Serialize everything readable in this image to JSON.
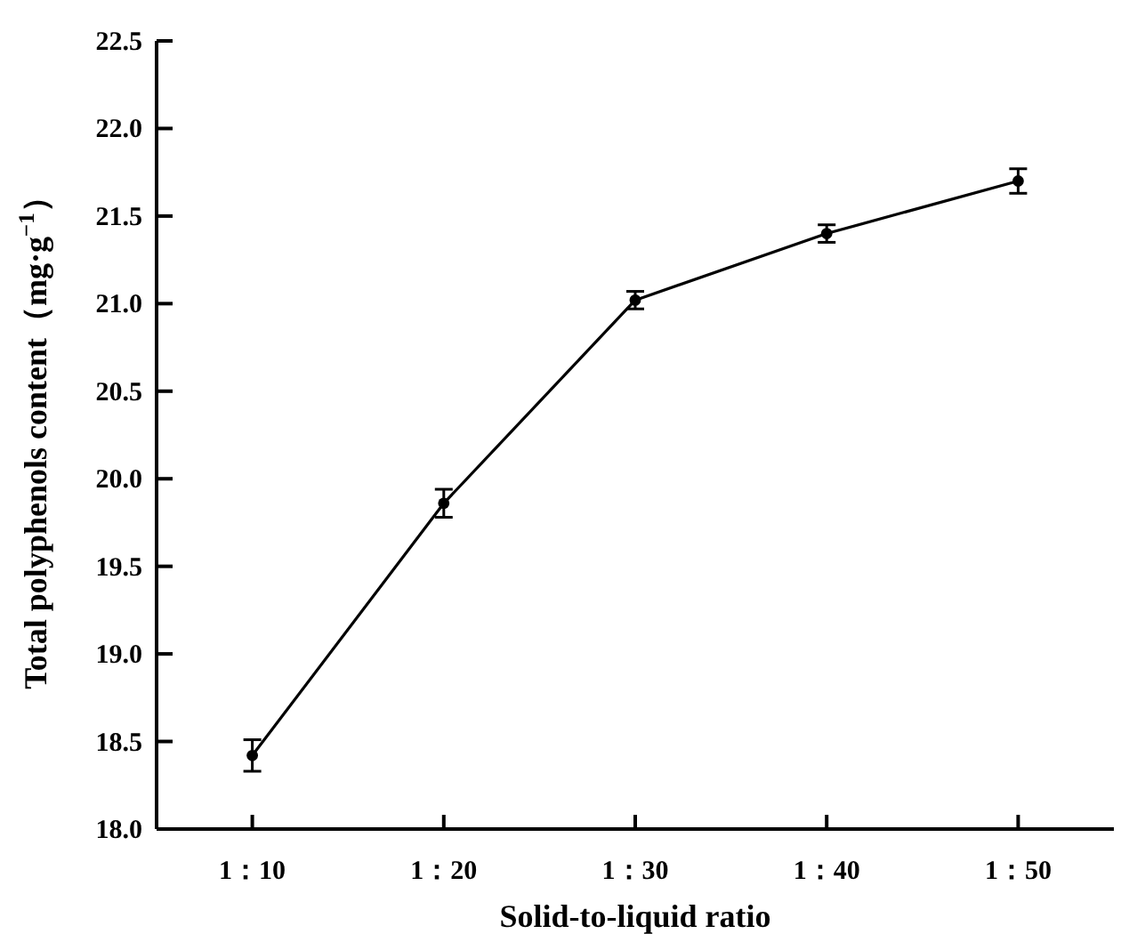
{
  "chart_data": {
    "type": "line",
    "xlabel": "Solid-to-liquid ratio",
    "ylabel": "Total polyphenols content（mg·g$^{−1}$）",
    "categories": [
      "1：10",
      "1：20",
      "1：30",
      "1：40",
      "1：50"
    ],
    "series": [
      {
        "color": "#000000",
        "values": [
          18.42,
          19.86,
          21.02,
          21.4,
          21.7
        ],
        "errors": [
          0.09,
          0.08,
          0.05,
          0.05,
          0.07
        ]
      }
    ],
    "ylim": [
      18.0,
      22.5
    ],
    "yticks": [
      {
        "value": 18.0,
        "label": "18.0"
      },
      {
        "value": 18.5,
        "label": "18.5"
      },
      {
        "value": 19.0,
        "label": "19.0"
      },
      {
        "value": 19.5,
        "label": "19.5"
      },
      {
        "value": 20.0,
        "label": "20.0"
      },
      {
        "value": 20.5,
        "label": "20.5"
      },
      {
        "value": 21.0,
        "label": "21.0"
      },
      {
        "value": 21.5,
        "label": "21.5"
      },
      {
        "value": 22.0,
        "label": "22.0"
      },
      {
        "value": 22.5,
        "label": "22.5"
      }
    ],
    "marker": "circle",
    "line_style": "solid"
  }
}
